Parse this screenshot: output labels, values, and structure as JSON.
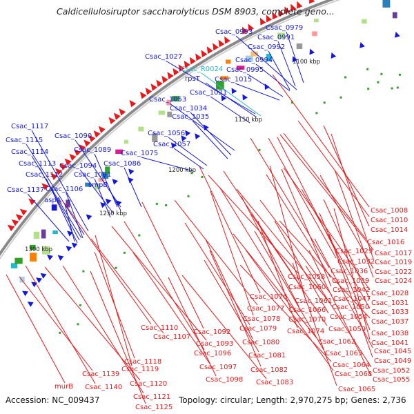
{
  "title": "Caldicellulosiruptor saccharolyticus DSM 8903, complete geno...",
  "footer": {
    "accession": "Accession: NC_009437",
    "summary": "Topology: circular; Length: 2,970,275 bp; Genes: 2,736"
  },
  "scale_labels": [
    "1100 kbp",
    "1150 kbp",
    "1200 kbp",
    "1250 kbp",
    "1300 kbp"
  ],
  "colors": {
    "forward": "#e8191b",
    "reverse": "#1418d8",
    "rna": "#27b8cc",
    "ring": "#8a8a8a"
  },
  "labels_outer": [
    "Csac_0979",
    "Csac_0993",
    "Csac_0991",
    "Csac_0992",
    "Csac_1027",
    "Csac_0994",
    "Csac_R0024",
    "Csac_0995",
    "rpsT",
    "Csac_1015",
    "Csac_1021",
    "Csac_1053",
    "Csac_1034",
    "Csac_1035",
    "Csac_1117",
    "Csac_1090",
    "Csac_1115",
    "Csac_1056",
    "Csac_1089",
    "Csac_1114",
    "Csac_1057",
    "Csac_1075",
    "Csac_1113",
    "Csac_1094",
    "Csac_1086",
    "Csac_1112",
    "Csac_1091",
    "smpB",
    "Csac_1137",
    "Csac_1106",
    "aspA"
  ],
  "labels_inner": [
    "Csac_1008",
    "Csac_1010",
    "Csac_1014",
    "Csac_1016",
    "Csac_1029",
    "Csac_1017",
    "Csac_1032",
    "Csac_1019",
    "Csac_1036",
    "Csac_1022",
    "Csac_1058",
    "Csac_1039",
    "Csac_1024",
    "Csac_1060",
    "Csac_1042",
    "Csac_1028",
    "Csac_1076",
    "Csac_1061",
    "Csac_1047",
    "Csac_1031",
    "Csac_1077",
    "Csac_1066",
    "Csac_1050",
    "Csac_1033",
    "Csac_1078",
    "Csac_1070",
    "Csac_1054",
    "Csac_1037",
    "Csac_1079",
    "Csac_1074",
    "Csac_1059",
    "Csac_1038",
    "Csac_1110",
    "Csac_1092",
    "Csac_1041",
    "Csac_1107",
    "Csac_1080",
    "Csac_1062",
    "Csac_1045",
    "Csac_1093",
    "Csac_1063",
    "Csac_1049",
    "Csac_1096",
    "Csac_1081",
    "Csac_1064",
    "Csac_1052",
    "Csac_1118",
    "Csac_1097",
    "Csac_1082",
    "Csac_1068",
    "Csac_1055",
    "Csac_1119",
    "Csac_1139",
    "Csac_1098",
    "Csac_1083",
    "murB",
    "Csac_1120",
    "Csac_1140",
    "Csac_1065",
    "Csac_1121",
    "Csac_1125"
  ]
}
